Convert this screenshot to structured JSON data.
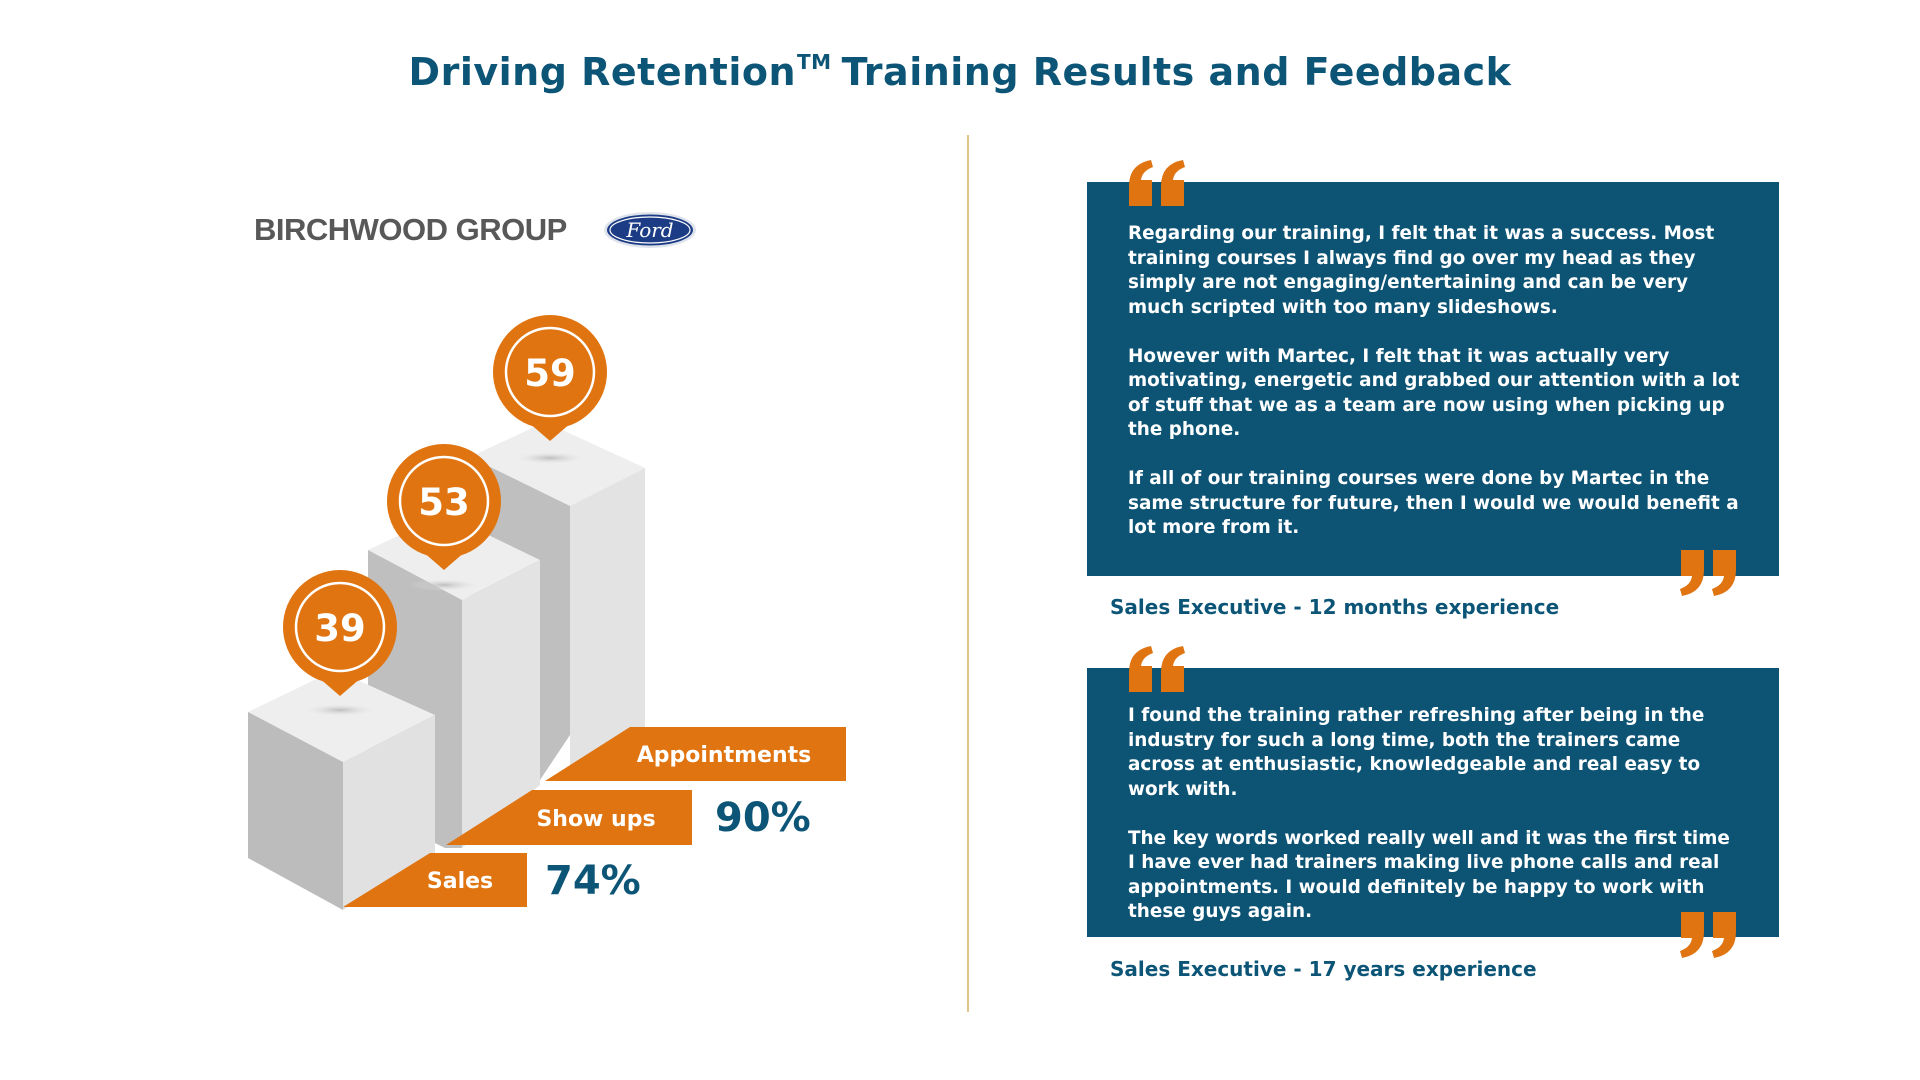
{
  "header": {
    "title_main": "Driving Retention",
    "title_tm": "TM",
    "title_rest": "Training Results and Feedback"
  },
  "logos": {
    "company_name": "BIRCHWOOD GROUP",
    "brand_mark": "Ford"
  },
  "stats": {
    "steps": [
      {
        "value": "39",
        "label": "Sales"
      },
      {
        "value": "53",
        "label": "Show ups"
      },
      {
        "value": "59",
        "label": "Appointments"
      }
    ],
    "percentages": {
      "show_ups": "90%",
      "sales": "74%"
    }
  },
  "colors": {
    "orange": "#e07410",
    "navy": "#0c5374",
    "title": "#0c5577",
    "divider": "#e3c489"
  },
  "feedback": [
    {
      "paragraphs": [
        "Regarding our training, I felt that it was a success. Most training courses I always find go over my head as they simply are not engaging/entertaining and can be very much scripted with too many slideshows.",
        "However with Martec, I felt that it was actually very motivating, energetic and grabbed our attention with a lot of stuff that we as a team are now using when picking up the phone.",
        "If all of our training courses were done by Martec in the same structure for future, then I would we would benefit a lot more from it."
      ],
      "attribution": "Sales Executive - 12 months experience"
    },
    {
      "paragraphs": [
        "I found the training rather refreshing after being in the industry for such a long time, both the trainers came across at enthusiastic, knowledgeable and real easy to work with.",
        "The key words worked really well and it was the first time I have ever had trainers making live phone calls and real appointments. I would definitely be happy to work with these guys again."
      ],
      "attribution": "Sales Executive - 17 years experience"
    }
  ]
}
